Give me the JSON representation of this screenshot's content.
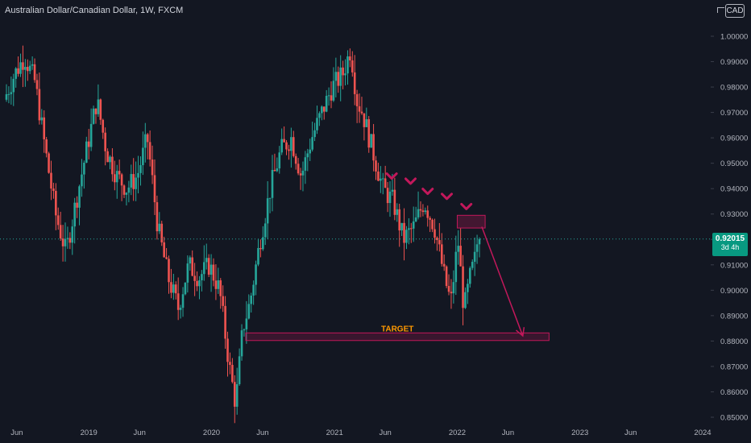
{
  "header": {
    "title": "Australian Dollar/Canadian Dollar, 1W, FXCM",
    "currency_button": "CAD"
  },
  "price_badge": {
    "price": "0.92015",
    "countdown": "3d 4h"
  },
  "colors": {
    "background": "#131722",
    "up": "#26a69a",
    "down": "#ef5350",
    "annotation": "#c2185b",
    "target_text": "#ff9800",
    "axis_text": "#b2b5be"
  },
  "chart_data": {
    "type": "candlestick",
    "symbol": "AUDCAD",
    "interval": "1W",
    "ylim": [
      0.848,
      1.004
    ],
    "y_ticks": [
      "1.00000",
      "0.99000",
      "0.98000",
      "0.97000",
      "0.96000",
      "0.95000",
      "0.94000",
      "0.93000",
      "0.92000",
      "0.91000",
      "0.90000",
      "0.89000",
      "0.88000",
      "0.87000",
      "0.86000",
      "0.85000"
    ],
    "x_ticks": [
      "Jun",
      "2019",
      "Jun",
      "2020",
      "Jun",
      "2021",
      "Jun",
      "2022",
      "Jun",
      "2023",
      "Jun",
      "2024"
    ],
    "x_range": [
      "2018-05",
      "2024-01"
    ],
    "current_price": 0.92015,
    "anchor_path": [
      [
        "2018-05-01",
        0.975
      ],
      [
        "2018-06-01",
        0.985
      ],
      [
        "2018-07-01",
        0.992
      ],
      [
        "2018-08-01",
        0.982
      ],
      [
        "2018-09-01",
        0.955
      ],
      [
        "2018-10-01",
        0.93
      ],
      [
        "2018-11-01",
        0.915
      ],
      [
        "2018-12-01",
        0.935
      ],
      [
        "2019-01-01",
        0.955
      ],
      [
        "2019-02-01",
        0.975
      ],
      [
        "2019-03-01",
        0.955
      ],
      [
        "2019-04-01",
        0.945
      ],
      [
        "2019-05-01",
        0.94
      ],
      [
        "2019-06-01",
        0.945
      ],
      [
        "2019-07-01",
        0.96
      ],
      [
        "2019-08-01",
        0.925
      ],
      [
        "2019-09-01",
        0.905
      ],
      [
        "2019-10-01",
        0.893
      ],
      [
        "2019-11-01",
        0.91
      ],
      [
        "2019-12-01",
        0.905
      ],
      [
        "2020-01-01",
        0.91
      ],
      [
        "2020-02-01",
        0.9
      ],
      [
        "2020-03-01",
        0.87
      ],
      [
        "2020-03-20",
        0.855
      ],
      [
        "2020-04-10",
        0.885
      ],
      [
        "2020-05-01",
        0.895
      ],
      [
        "2020-06-01",
        0.92
      ],
      [
        "2020-07-01",
        0.94
      ],
      [
        "2020-08-01",
        0.955
      ],
      [
        "2020-09-01",
        0.96
      ],
      [
        "2020-10-01",
        0.945
      ],
      [
        "2020-11-01",
        0.96
      ],
      [
        "2020-12-01",
        0.97
      ],
      [
        "2021-01-01",
        0.98
      ],
      [
        "2021-02-01",
        0.985
      ],
      [
        "2021-02-25",
        0.995
      ],
      [
        "2021-03-15",
        0.975
      ],
      [
        "2021-04-01",
        0.97
      ],
      [
        "2021-05-01",
        0.955
      ],
      [
        "2021-06-01",
        0.94
      ],
      [
        "2021-07-01",
        0.935
      ],
      [
        "2021-08-01",
        0.92
      ],
      [
        "2021-09-01",
        0.925
      ],
      [
        "2021-10-01",
        0.935
      ],
      [
        "2021-11-01",
        0.925
      ],
      [
        "2021-12-01",
        0.905
      ],
      [
        "2021-12-20",
        0.895
      ],
      [
        "2022-01-10",
        0.92
      ],
      [
        "2022-01-28",
        0.892
      ],
      [
        "2022-02-15",
        0.905
      ],
      [
        "2022-03-01",
        0.912
      ],
      [
        "2022-03-10",
        0.92015
      ]
    ],
    "annotations": {
      "lower_highs": [
        [
          "2021-06-20",
          0.944
        ],
        [
          "2021-08-15",
          0.942
        ],
        [
          "2021-10-05",
          0.938
        ],
        [
          "2021-12-01",
          0.936
        ],
        [
          "2022-01-28",
          0.932
        ]
      ],
      "resistance_zone": {
        "x0": "2022-01-01",
        "x1": "2022-03-25",
        "y0": 0.9245,
        "y1": 0.9295
      },
      "target_zone": {
        "x0": "2020-04-12",
        "x1": "2022-10-01",
        "y0": 0.8802,
        "y1": 0.8832,
        "label": "TARGET"
      },
      "arrow": {
        "from": [
          "2022-03-15",
          0.925
        ],
        "to": [
          "2022-07-15",
          0.882
        ]
      }
    }
  }
}
